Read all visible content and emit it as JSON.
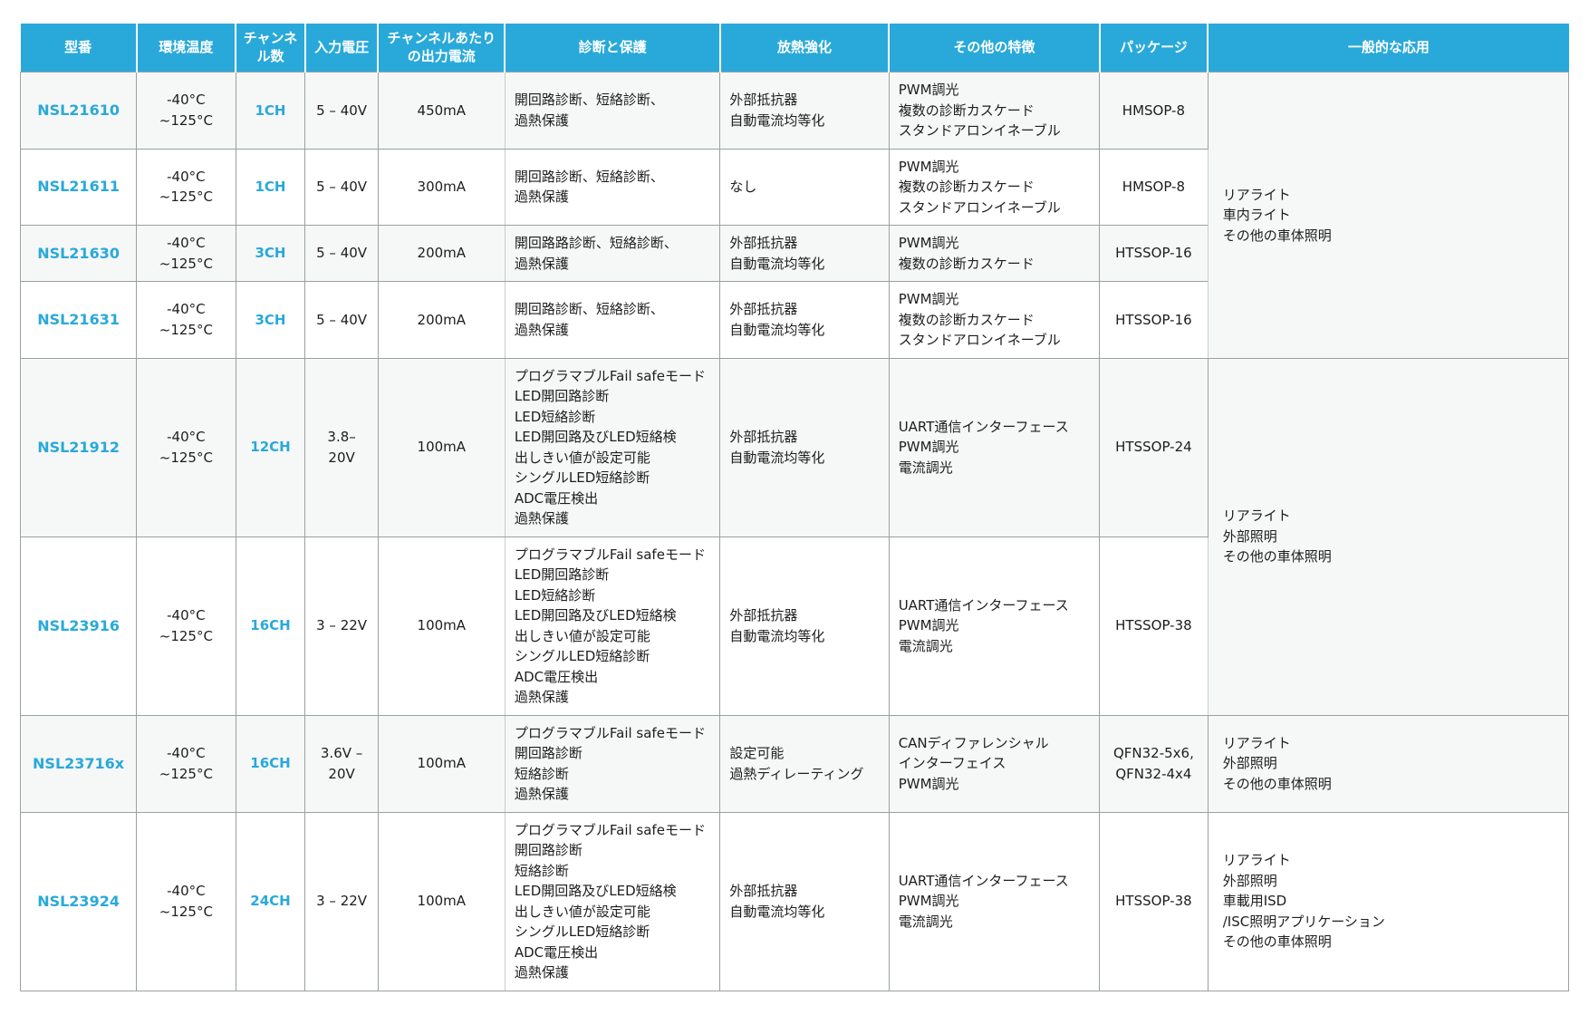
{
  "accent_color": "#29a9da",
  "row_alt_color": "#f6f7f7",
  "table": {
    "columns": [
      {
        "key": "part",
        "label": "型番"
      },
      {
        "key": "temp",
        "label": "環境温度"
      },
      {
        "key": "channels",
        "label": "チャンネル数"
      },
      {
        "key": "vin",
        "label": "入力電圧"
      },
      {
        "key": "iout",
        "label": "チャンネルあたりの出力電流"
      },
      {
        "key": "diag",
        "label": "診断と保護"
      },
      {
        "key": "thermal",
        "label": "放熱強化"
      },
      {
        "key": "features",
        "label": "その他の特徴"
      },
      {
        "key": "package",
        "label": "パッケージ"
      },
      {
        "key": "apps",
        "label": "一般的な応用"
      }
    ],
    "rows": [
      {
        "part": "NSL21610",
        "temp": "-40°C ~125°C",
        "channels": "1CH",
        "vin": "5 – 40V",
        "iout": "450mA",
        "diag": "開回路診断、短絡診断、\n過熱保護",
        "thermal": "外部抵抗器\n自動電流均等化",
        "features": "PWM調光\n複数の診断カスケード\nスタンドアロンイネーブル",
        "package": "HMSOP-8",
        "apps": "リアライト\n車内ライト\nその他の車体照明",
        "apps_rowspan": 4
      },
      {
        "part": "NSL21611",
        "temp": "-40°C ~125°C",
        "channels": "1CH",
        "vin": "5 – 40V",
        "iout": "300mA",
        "diag": "開回路診断、短絡診断、\n過熱保護",
        "thermal": "なし",
        "features": "PWM調光\n複数の診断カスケード\nスタンドアロンイネーブル",
        "package": "HMSOP-8",
        "apps": null
      },
      {
        "part": "NSL21630",
        "temp": "-40°C ~125°C",
        "channels": "3CH",
        "vin": "5 – 40V",
        "iout": "200mA",
        "diag": "開回路路診断、短絡診断、\n過熱保護",
        "thermal": "外部抵抗器\n自動電流均等化",
        "features": "PWM調光\n複数の診断カスケード",
        "package": "HTSSOP-16",
        "apps": null
      },
      {
        "part": "NSL21631",
        "temp": "-40°C ~125°C",
        "channels": "3CH",
        "vin": "5 – 40V",
        "iout": "200mA",
        "diag": "開回路診断、短絡診断、\n過熱保護",
        "thermal": "外部抵抗器\n自動電流均等化",
        "features": "PWM調光\n複数の診断カスケード\nスタンドアロンイネーブル",
        "package": "HTSSOP-16",
        "apps": null
      },
      {
        "part": "NSL21912",
        "temp": "-40°C ~125°C",
        "channels": "12CH",
        "vin": "3.8– 20V",
        "iout": "100mA",
        "diag": "プログラマブルFail safeモード\nLED開回路診断\nLED短絡診断\nLED開回路及びLED短絡検\n出しきい値が設定可能\nシングルLED短絡診断\nADC電圧検出\n過熱保護",
        "thermal": "外部抵抗器\n自動電流均等化",
        "features": "UART通信インターフェース\nPWM調光\n電流調光",
        "package": "HTSSOP-24",
        "apps": "リアライト\n外部照明\nその他の車体照明",
        "apps_rowspan": 2
      },
      {
        "part": "NSL23916",
        "temp": "-40°C ~125°C",
        "channels": "16CH",
        "vin": "3 – 22V",
        "iout": "100mA",
        "diag": "プログラマブルFail safeモード\nLED開回路診断\nLED短絡診断\nLED開回路及びLED短絡検\n出しきい値が設定可能\nシングルLED短絡診断\nADC電圧検出\n過熱保護",
        "thermal": "外部抵抗器\n自動電流均等化",
        "features": "UART通信インターフェース\nPWM調光\n電流調光",
        "package": "HTSSOP-38",
        "apps": null
      },
      {
        "part": "NSL23716x",
        "temp": "-40°C ~125°C",
        "channels": "16CH",
        "vin": "3.6V – 20V",
        "iout": "100mA",
        "diag": "プログラマブルFail safeモード\n開回路診断\n短絡診断\n過熱保護",
        "thermal": "設定可能\n過熱ディレーティング",
        "features": "CANディファレンシャル\nインターフェイス\nPWM調光",
        "package": "QFN32-5x6,\nQFN32-4x4",
        "apps": "リアライト\n外部照明\nその他の車体照明",
        "apps_rowspan": 1
      },
      {
        "part": "NSL23924",
        "temp": "-40°C ~125°C",
        "channels": "24CH",
        "vin": "3 – 22V",
        "iout": "100mA",
        "diag": "プログラマブルFail safeモード\n開回路診断\n短絡診断\nLED開回路及びLED短絡検\n出しきい値が設定可能\nシングルLED短絡診断\nADC電圧検出\n過熱保護",
        "thermal": "外部抵抗器\n自動電流均等化",
        "features": "UART通信インターフェース\nPWM調光\n電流調光",
        "package": "HTSSOP-38",
        "apps": "リアライト\n外部照明\n車載用ISD\n/ISC照明アプリケーション\nその他の車体照明",
        "apps_rowspan": 1
      }
    ]
  }
}
